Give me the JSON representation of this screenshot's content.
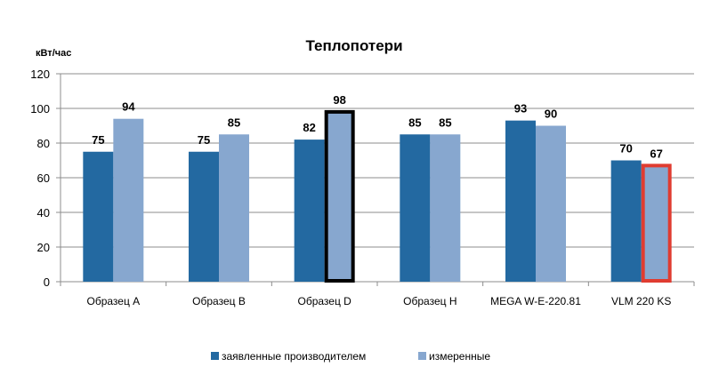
{
  "chart_data": {
    "type": "bar",
    "title": "Теплопотери",
    "ylabel": "кВт/час",
    "xlabel": "",
    "ylim": [
      0,
      120
    ],
    "yticks": [
      0,
      20,
      40,
      60,
      80,
      100,
      120
    ],
    "grid": true,
    "legend_position": "bottom",
    "categories": [
      "Образец А",
      "Образец В",
      "Образец D",
      "Образец Н",
      "MEGA W-E-220.81",
      "VLM 220 KS"
    ],
    "series": [
      {
        "name": "заявленные производителем",
        "color": "#2369a1",
        "values": [
          75,
          75,
          82,
          85,
          93,
          70
        ]
      },
      {
        "name": "измеренные",
        "color": "#87a7cf",
        "values": [
          94,
          85,
          98,
          85,
          90,
          67
        ]
      }
    ],
    "highlights": [
      {
        "series": 1,
        "category": "Образец D",
        "outline_color": "#000000"
      },
      {
        "series": 1,
        "category": "VLM 220 KS",
        "outline_color": "#e03c31"
      }
    ]
  }
}
